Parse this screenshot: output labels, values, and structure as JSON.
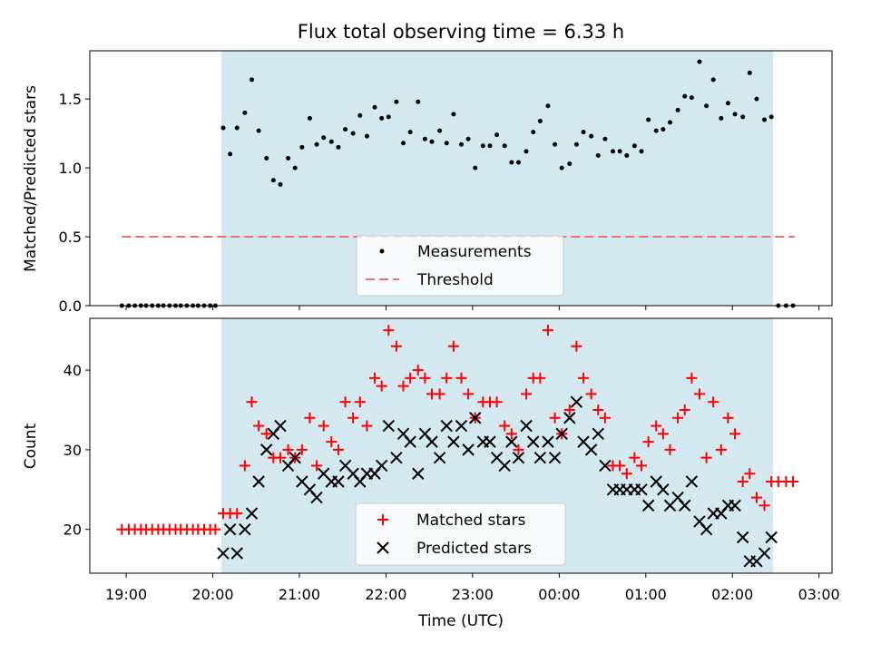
{
  "chart_data": [
    {
      "type": "scatter",
      "title": "Flux total observing time = 6.33 h",
      "ylabel": "Matched/Predicted stars",
      "xlabel": "",
      "x_axis": "time (UTC hours; values past 24 wrap to the next day)",
      "xlim": [
        18.58,
        27.15
      ],
      "ylim": [
        0,
        1.85
      ],
      "yticks": [
        0.0,
        0.5,
        1.0,
        1.5
      ],
      "ytick_labels": [
        "0.0",
        "0.5",
        "1.0",
        "1.5"
      ],
      "observing_window": [
        20.1,
        26.47
      ],
      "legend": {
        "position": "lower-center",
        "entries": [
          "Measurements",
          "Threshold"
        ]
      },
      "threshold": {
        "name": "Threshold",
        "y": 0.5,
        "x_range": [
          18.95,
          26.72
        ],
        "color": "#f07070"
      },
      "series": [
        {
          "name": "Measurements",
          "color": "#000000",
          "marker": "dot",
          "x": [
            18.95,
            19.03,
            19.1,
            19.17,
            19.23,
            19.3,
            19.37,
            19.43,
            19.5,
            19.57,
            19.63,
            19.7,
            19.77,
            19.83,
            19.9,
            19.97,
            20.03,
            20.12,
            20.2,
            20.28,
            20.37,
            20.45,
            20.53,
            20.62,
            20.7,
            20.78,
            20.87,
            20.95,
            21.03,
            21.12,
            21.2,
            21.28,
            21.37,
            21.45,
            21.53,
            21.62,
            21.7,
            21.78,
            21.87,
            21.95,
            22.03,
            22.12,
            22.2,
            22.28,
            22.37,
            22.45,
            22.53,
            22.62,
            22.7,
            22.78,
            22.87,
            22.95,
            23.03,
            23.12,
            23.2,
            23.28,
            23.37,
            23.45,
            23.53,
            23.62,
            23.7,
            23.78,
            23.87,
            23.95,
            24.03,
            24.12,
            24.2,
            24.28,
            24.37,
            24.45,
            24.53,
            24.62,
            24.7,
            24.78,
            24.87,
            24.95,
            25.03,
            25.12,
            25.2,
            25.28,
            25.37,
            25.45,
            25.53,
            25.62,
            25.7,
            25.78,
            25.87,
            25.95,
            26.03,
            26.12,
            26.2,
            26.28,
            26.37,
            26.45,
            26.53,
            26.62,
            26.7
          ],
          "y": [
            0,
            0,
            0,
            0,
            0,
            0,
            0,
            0,
            0,
            0,
            0,
            0,
            0,
            0,
            0,
            0,
            0,
            1.29,
            1.1,
            1.29,
            1.4,
            1.64,
            1.27,
            1.07,
            0.91,
            0.88,
            1.07,
            1.0,
            1.15,
            1.36,
            1.17,
            1.22,
            1.19,
            1.15,
            1.28,
            1.25,
            1.38,
            1.23,
            1.44,
            1.36,
            1.37,
            1.48,
            1.18,
            1.26,
            1.48,
            1.21,
            1.19,
            1.27,
            1.18,
            1.39,
            1.17,
            1.21,
            1.0,
            1.16,
            1.16,
            1.24,
            1.16,
            1.04,
            1.04,
            1.12,
            1.26,
            1.34,
            1.45,
            1.17,
            1.0,
            1.03,
            1.17,
            1.26,
            1.23,
            1.09,
            1.21,
            1.12,
            1.12,
            1.09,
            1.16,
            1.12,
            1.35,
            1.27,
            1.28,
            1.33,
            1.42,
            1.52,
            1.51,
            1.77,
            1.45,
            1.64,
            1.36,
            1.47,
            1.39,
            1.37,
            1.69,
            1.5,
            1.35,
            1.37,
            0,
            0,
            0
          ]
        }
      ]
    },
    {
      "type": "scatter",
      "xlabel": "Time (UTC)",
      "ylabel": "Count",
      "xlim": [
        18.58,
        27.15
      ],
      "ylim": [
        14.5,
        46.5
      ],
      "yticks": [
        20,
        30,
        40
      ],
      "ytick_labels": [
        "20",
        "30",
        "40"
      ],
      "xticks": [
        19,
        20,
        21,
        22,
        23,
        24,
        25,
        26,
        27
      ],
      "xtick_labels": [
        "19:00",
        "20:00",
        "21:00",
        "22:00",
        "23:00",
        "00:00",
        "01:00",
        "02:00",
        "03:00"
      ],
      "observing_window": [
        20.1,
        26.47
      ],
      "legend": {
        "position": "lower-center",
        "entries": [
          "Matched stars",
          "Predicted stars"
        ]
      },
      "series": [
        {
          "name": "Matched stars",
          "color": "#ff0000",
          "marker": "plus",
          "x": [
            18.95,
            19.03,
            19.1,
            19.17,
            19.23,
            19.3,
            19.37,
            19.43,
            19.5,
            19.57,
            19.63,
            19.7,
            19.77,
            19.83,
            19.9,
            19.97,
            20.03,
            20.12,
            20.2,
            20.28,
            20.37,
            20.45,
            20.53,
            20.62,
            20.7,
            20.78,
            20.87,
            20.95,
            21.03,
            21.12,
            21.2,
            21.28,
            21.37,
            21.45,
            21.53,
            21.62,
            21.7,
            21.78,
            21.87,
            21.95,
            22.03,
            22.12,
            22.2,
            22.28,
            22.37,
            22.45,
            22.53,
            22.62,
            22.7,
            22.78,
            22.87,
            22.95,
            23.03,
            23.12,
            23.2,
            23.28,
            23.37,
            23.45,
            23.53,
            23.62,
            23.7,
            23.78,
            23.87,
            23.95,
            24.03,
            24.12,
            24.2,
            24.28,
            24.37,
            24.45,
            24.53,
            24.62,
            24.7,
            24.78,
            24.87,
            24.95,
            25.03,
            25.12,
            25.2,
            25.28,
            25.37,
            25.45,
            25.53,
            25.62,
            25.7,
            25.78,
            25.87,
            25.95,
            26.03,
            26.12,
            26.2,
            26.28,
            26.37,
            26.45,
            26.53,
            26.62,
            26.7
          ],
          "y": [
            20,
            20,
            20,
            20,
            20,
            20,
            20,
            20,
            20,
            20,
            20,
            20,
            20,
            20,
            20,
            20,
            20,
            22,
            22,
            22,
            28,
            36,
            33,
            32,
            29,
            29,
            30,
            29,
            30,
            34,
            28,
            33,
            31,
            30,
            36,
            34,
            36,
            33,
            39,
            38,
            45,
            43,
            38,
            39,
            40,
            39,
            37,
            37,
            39,
            43,
            39,
            37,
            34,
            36,
            36,
            36,
            33,
            32,
            30,
            37,
            39,
            39,
            45,
            34,
            32,
            35,
            43,
            39,
            37,
            35,
            34,
            28,
            28,
            27,
            29,
            28,
            31,
            33,
            32,
            30,
            34,
            35,
            39,
            37,
            29,
            36,
            30,
            34,
            32,
            26,
            27,
            24,
            23,
            26,
            26,
            26,
            26
          ]
        },
        {
          "name": "Predicted stars",
          "color": "#000000",
          "marker": "cross",
          "x": [
            20.12,
            20.2,
            20.28,
            20.37,
            20.45,
            20.53,
            20.62,
            20.7,
            20.78,
            20.87,
            20.95,
            21.03,
            21.12,
            21.2,
            21.28,
            21.37,
            21.45,
            21.53,
            21.62,
            21.7,
            21.78,
            21.87,
            21.95,
            22.03,
            22.12,
            22.2,
            22.28,
            22.37,
            22.45,
            22.53,
            22.62,
            22.7,
            22.78,
            22.87,
            22.95,
            23.03,
            23.12,
            23.2,
            23.28,
            23.37,
            23.45,
            23.53,
            23.62,
            23.7,
            23.78,
            23.87,
            23.95,
            24.03,
            24.12,
            24.2,
            24.28,
            24.37,
            24.45,
            24.53,
            24.62,
            24.7,
            24.78,
            24.87,
            24.95,
            25.03,
            25.12,
            25.2,
            25.28,
            25.37,
            25.45,
            25.53,
            25.62,
            25.7,
            25.78,
            25.87,
            25.95,
            26.03,
            26.12,
            26.2,
            26.28,
            26.37,
            26.45
          ],
          "y": [
            17,
            20,
            17,
            20,
            22,
            26,
            30,
            32,
            33,
            28,
            29,
            26,
            25,
            24,
            27,
            26,
            26,
            28,
            27,
            26,
            27,
            27,
            28,
            33,
            29,
            32,
            31,
            27,
            32,
            31,
            29,
            33,
            31,
            33,
            30,
            34,
            31,
            31,
            29,
            28,
            31,
            29,
            33,
            31,
            29,
            31,
            29,
            32,
            34,
            36,
            31,
            30,
            32,
            28,
            25,
            25,
            25,
            25,
            25,
            23,
            26,
            25,
            23,
            24,
            23,
            26,
            21,
            20,
            22,
            22,
            23,
            23,
            19,
            16,
            16,
            17,
            19
          ]
        }
      ]
    }
  ]
}
